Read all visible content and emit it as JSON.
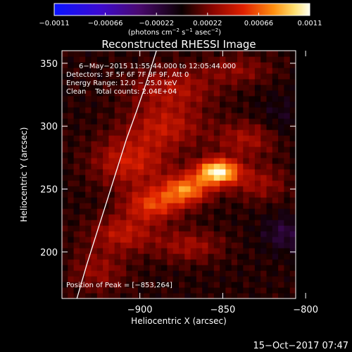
{
  "chart_data": {
    "type": "heatmap",
    "title": "Reconstructed RHESSI Image",
    "xlabel": "Heliocentric X (arcsec)",
    "ylabel": "Heliocentric Y (arcsec)",
    "xlim": [
      -947,
      -806
    ],
    "ylim": [
      163,
      360
    ],
    "x_ticks": [
      -900,
      -850,
      -800
    ],
    "x_tick_labels": [
      "−900",
      "−850",
      "−800"
    ],
    "y_ticks": [
      200,
      250,
      300,
      350
    ],
    "y_tick_labels": [
      "200",
      "250",
      "300",
      "350"
    ],
    "colorbar": {
      "range": [
        -0.0011,
        0.0011
      ],
      "tick_values": [
        -0.0011,
        -0.00066,
        -0.00022,
        0.00022,
        0.00066,
        0.0011
      ],
      "tick_labels": [
        "−0.0011",
        "−0.00066",
        "−0.00022",
        "0.00022",
        "0.00066",
        "0.0011"
      ],
      "label_main": "(photons cm",
      "label_exp1": "−2",
      "label_mid1": " s",
      "label_exp2": "−1",
      "label_mid2": " asec",
      "label_exp3": "−2",
      "label_end": ")"
    },
    "annotations": {
      "time_range": "6−May−2015 11:55:44.000 to 12:05:44.000",
      "detectors": "Detectors: 3F 5F 6F 7F 8F 9F, Att 0",
      "energy_range": "Energy Range: 12.0 − 25.0 keV",
      "clean_counts": "Clean    Total counts: 2.04E+04",
      "peak_position": "Position of Peak = [−853,264]"
    },
    "peak": {
      "x": -853,
      "y": 264
    },
    "sources": [
      {
        "x": -853,
        "y": 264,
        "sx": 9,
        "sy": 7,
        "amp": 0.00105
      },
      {
        "x": -872,
        "y": 250,
        "sx": 10,
        "sy": 8,
        "amp": 0.00068
      },
      {
        "x": -892,
        "y": 238,
        "sx": 12,
        "sy": 9,
        "amp": 0.00052
      },
      {
        "x": -905,
        "y": 272,
        "sx": 16,
        "sy": 14,
        "amp": 0.00042
      },
      {
        "x": -885,
        "y": 300,
        "sx": 16,
        "sy": 12,
        "amp": 0.00035
      },
      {
        "x": -880,
        "y": 330,
        "sx": 18,
        "sy": 12,
        "amp": 0.00032
      },
      {
        "x": -835,
        "y": 290,
        "sx": 14,
        "sy": 10,
        "amp": 0.0003
      },
      {
        "x": -828,
        "y": 255,
        "sx": 12,
        "sy": 10,
        "amp": 0.00026
      },
      {
        "x": -910,
        "y": 215,
        "sx": 14,
        "sy": 10,
        "amp": 0.00036
      },
      {
        "x": -870,
        "y": 205,
        "sx": 14,
        "sy": 9,
        "amp": 0.00028
      },
      {
        "x": -925,
        "y": 185,
        "sx": 12,
        "sy": 12,
        "amp": 0.00025
      },
      {
        "x": -840,
        "y": 345,
        "sx": 14,
        "sy": 8,
        "amp": 0.00022
      },
      {
        "x": -812,
        "y": 215,
        "sx": 10,
        "sy": 10,
        "amp": -0.00022
      },
      {
        "x": -815,
        "y": 305,
        "sx": 10,
        "sy": 14,
        "amp": -0.00012
      }
    ],
    "limb_curve": {
      "x": [
        -938,
        -932,
        -926,
        -920,
        -914,
        -908,
        -902,
        -896,
        -890
      ],
      "y": [
        163,
        190,
        215,
        240,
        265,
        290,
        312,
        335,
        360
      ]
    }
  },
  "footer": {
    "timestamp": "15−Oct−2017 07:47"
  }
}
